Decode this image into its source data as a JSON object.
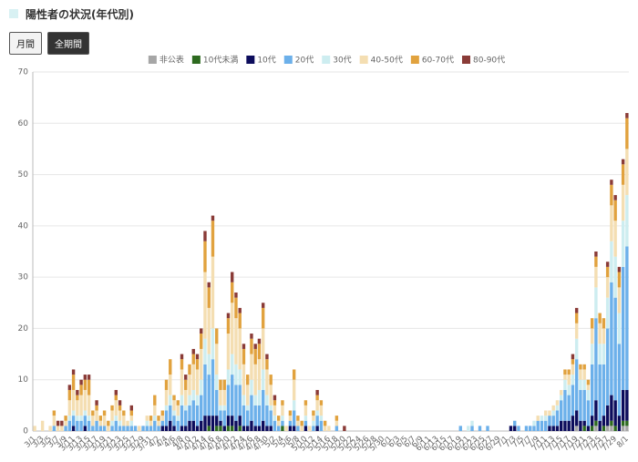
{
  "header": {
    "title": "陽性者の状況(年代別)"
  },
  "buttons": [
    "月間",
    "全期間"
  ],
  "chart_data": {
    "type": "bar",
    "stacked": true,
    "grid": true,
    "legend": "top",
    "ylim": [
      0,
      70
    ],
    "yticks": [
      0,
      10,
      20,
      30,
      40,
      50,
      60,
      70
    ],
    "categories": [
      "3/1",
      null,
      "3/3",
      null,
      "3/5",
      null,
      "3/7",
      null,
      "3/9",
      null,
      "3/11",
      null,
      "3/13",
      null,
      "3/15",
      null,
      "3/17",
      null,
      "3/19",
      null,
      "3/21",
      null,
      "3/23",
      null,
      "3/25",
      null,
      "3/27",
      null,
      "3/29",
      null,
      "3/31",
      null,
      "4/2",
      null,
      "4/4",
      null,
      "4/6",
      null,
      "4/8",
      null,
      "4/10",
      null,
      "4/12",
      null,
      "4/14",
      null,
      "4/16",
      null,
      "4/18",
      null,
      "4/20",
      null,
      "4/22",
      null,
      "4/24",
      null,
      "4/26",
      null,
      "4/28",
      null,
      "4/30",
      null,
      "5/2",
      null,
      "5/4",
      null,
      "5/6",
      null,
      "5/8",
      null,
      "5/10",
      null,
      "5/12",
      null,
      "5/14",
      null,
      "5/16",
      null,
      "5/18",
      null,
      "5/20",
      null,
      "5/22",
      null,
      "5/24",
      null,
      "5/26",
      null,
      "5/28",
      null,
      "5/30",
      null,
      "6/1",
      null,
      "6/3",
      null,
      "6/5",
      null,
      "6/7",
      null,
      "6/9",
      null,
      "6/11",
      null,
      "6/13",
      null,
      "6/15",
      null,
      "6/17",
      null,
      "6/19",
      null,
      "6/21",
      null,
      "6/23",
      null,
      "6/25",
      null,
      "6/27",
      null,
      "6/29",
      null,
      "7/1",
      null,
      "7/3",
      null,
      "7/5",
      null,
      "7/7",
      null,
      "7/9",
      null,
      "7/11",
      null,
      "7/13",
      null,
      "7/15",
      null,
      "7/17",
      null,
      "7/19",
      null,
      "7/21",
      null,
      "7/23",
      null,
      "7/25",
      null,
      "7/27",
      null,
      "7/29",
      null,
      null,
      "8/1"
    ],
    "series": [
      {
        "name": "非公表",
        "color": "#a6a6a6",
        "values": [
          0,
          0,
          0,
          0,
          0,
          0,
          0,
          0,
          0,
          0,
          0,
          0,
          0,
          0,
          0,
          0,
          0,
          0,
          0,
          0,
          0,
          0,
          0,
          0,
          0,
          0,
          0,
          0,
          0,
          0,
          0,
          0,
          0,
          0,
          0,
          0,
          0,
          0,
          0,
          0,
          0,
          0,
          0,
          0,
          0,
          0,
          0,
          0,
          0,
          0,
          0,
          0,
          0,
          0,
          0,
          0,
          0,
          0,
          0,
          0,
          0,
          0,
          0,
          0,
          0,
          0,
          0,
          0,
          0,
          0,
          0,
          0,
          0,
          0,
          0,
          0,
          0,
          0,
          0,
          0,
          0,
          0,
          0,
          0,
          0,
          0,
          0,
          0,
          0,
          0,
          0,
          0,
          0,
          0,
          0,
          0,
          0,
          0,
          0,
          0,
          0,
          0,
          0,
          0,
          0,
          0,
          0,
          0,
          0,
          0,
          0,
          0,
          0,
          0,
          0,
          0,
          0,
          0,
          0,
          0,
          0,
          0,
          0,
          0,
          0,
          0,
          0,
          0,
          0,
          0,
          0,
          0,
          0,
          0,
          0,
          0,
          0,
          0,
          0,
          0,
          1,
          0,
          0,
          0,
          0,
          1,
          0,
          0,
          1,
          1,
          0,
          0,
          1,
          1
        ]
      },
      {
        "name": "10代未満",
        "color": "#2d6a1f",
        "values": [
          0,
          0,
          0,
          0,
          0,
          0,
          0,
          0,
          0,
          0,
          0,
          0,
          0,
          0,
          0,
          0,
          0,
          0,
          0,
          0,
          0,
          0,
          0,
          0,
          0,
          0,
          0,
          0,
          0,
          0,
          0,
          0,
          0,
          0,
          0,
          0,
          0,
          0,
          0,
          0,
          0,
          0,
          0,
          0,
          0,
          1,
          0,
          1,
          1,
          0,
          1,
          1,
          0,
          1,
          0,
          0,
          0,
          0,
          0,
          0,
          0,
          0,
          0,
          0,
          1,
          0,
          0,
          0,
          0,
          0,
          0,
          0,
          0,
          0,
          0,
          0,
          0,
          0,
          0,
          0,
          0,
          0,
          0,
          0,
          0,
          0,
          0,
          0,
          0,
          0,
          0,
          0,
          0,
          0,
          0,
          0,
          0,
          0,
          0,
          0,
          0,
          0,
          0,
          0,
          0,
          0,
          0,
          0,
          0,
          0,
          0,
          0,
          0,
          0,
          0,
          0,
          0,
          0,
          0,
          0,
          0,
          0,
          0,
          0,
          0,
          0,
          0,
          0,
          0,
          0,
          0,
          0,
          0,
          0,
          0,
          0,
          0,
          0,
          0,
          0,
          0,
          0,
          1,
          0,
          1,
          1,
          0,
          1,
          0,
          1,
          1,
          0,
          1,
          1
        ]
      },
      {
        "name": "10代",
        "color": "#0c0c5c",
        "values": [
          0,
          0,
          0,
          0,
          0,
          0,
          0,
          0,
          0,
          0,
          1,
          0,
          0,
          1,
          0,
          0,
          0,
          0,
          0,
          0,
          0,
          0,
          0,
          0,
          0,
          0,
          0,
          0,
          0,
          0,
          0,
          0,
          0,
          1,
          1,
          2,
          1,
          0,
          1,
          1,
          2,
          2,
          1,
          2,
          3,
          2,
          3,
          2,
          1,
          1,
          2,
          2,
          2,
          2,
          1,
          1,
          2,
          1,
          1,
          2,
          1,
          1,
          0,
          0,
          0,
          0,
          1,
          1,
          0,
          0,
          1,
          0,
          0,
          1,
          0,
          0,
          0,
          0,
          0,
          0,
          0,
          0,
          0,
          0,
          0,
          0,
          0,
          0,
          0,
          0,
          0,
          0,
          0,
          0,
          0,
          0,
          0,
          0,
          0,
          0,
          0,
          0,
          0,
          0,
          0,
          0,
          0,
          0,
          0,
          0,
          0,
          0,
          0,
          0,
          0,
          0,
          0,
          0,
          0,
          0,
          0,
          0,
          0,
          1,
          1,
          0,
          0,
          0,
          0,
          0,
          0,
          0,
          0,
          1,
          1,
          1,
          2,
          2,
          2,
          3,
          3,
          2,
          1,
          1,
          2,
          4,
          2,
          2,
          4,
          5,
          5,
          3,
          6,
          6
        ]
      },
      {
        "name": "20代",
        "color": "#6cb0ea",
        "values": [
          0,
          0,
          0,
          0,
          0,
          1,
          0,
          0,
          1,
          2,
          2,
          2,
          2,
          2,
          2,
          1,
          2,
          1,
          1,
          0,
          1,
          2,
          1,
          1,
          1,
          1,
          1,
          0,
          1,
          1,
          1,
          2,
          1,
          1,
          3,
          3,
          2,
          2,
          4,
          3,
          3,
          4,
          4,
          5,
          10,
          8,
          11,
          5,
          2,
          3,
          6,
          8,
          7,
          6,
          4,
          3,
          5,
          4,
          4,
          6,
          4,
          3,
          2,
          1,
          1,
          0,
          1,
          3,
          1,
          0,
          1,
          0,
          1,
          2,
          2,
          0,
          0,
          0,
          1,
          0,
          0,
          0,
          0,
          0,
          0,
          0,
          0,
          0,
          0,
          0,
          0,
          0,
          0,
          0,
          0,
          0,
          0,
          0,
          0,
          0,
          0,
          0,
          0,
          0,
          0,
          0,
          0,
          0,
          0,
          0,
          1,
          0,
          0,
          1,
          0,
          1,
          0,
          1,
          0,
          0,
          0,
          0,
          0,
          0,
          1,
          1,
          0,
          1,
          1,
          1,
          2,
          2,
          2,
          2,
          2,
          3,
          4,
          6,
          5,
          6,
          10,
          6,
          6,
          5,
          10,
          16,
          11,
          10,
          15,
          22,
          20,
          14,
          24,
          28
        ]
      },
      {
        "name": "30代",
        "color": "#cdedf0",
        "values": [
          0,
          0,
          0,
          0,
          0,
          0,
          0,
          0,
          0,
          1,
          1,
          1,
          1,
          1,
          1,
          0,
          0,
          0,
          0,
          0,
          1,
          1,
          1,
          0,
          0,
          1,
          0,
          0,
          0,
          1,
          0,
          1,
          0,
          0,
          1,
          2,
          1,
          1,
          2,
          1,
          2,
          2,
          2,
          3,
          5,
          4,
          6,
          3,
          1,
          1,
          3,
          4,
          4,
          3,
          2,
          1,
          3,
          2,
          3,
          4,
          2,
          1,
          1,
          0,
          1,
          0,
          0,
          2,
          0,
          0,
          1,
          0,
          1,
          1,
          1,
          0,
          0,
          0,
          0,
          0,
          0,
          0,
          0,
          0,
          0,
          0,
          0,
          0,
          0,
          0,
          0,
          0,
          0,
          0,
          0,
          0,
          0,
          0,
          0,
          0,
          0,
          0,
          0,
          0,
          0,
          0,
          0,
          0,
          0,
          0,
          0,
          0,
          1,
          1,
          0,
          0,
          0,
          0,
          0,
          0,
          0,
          0,
          0,
          0,
          0,
          0,
          0,
          0,
          0,
          1,
          0,
          1,
          1,
          0,
          1,
          1,
          1,
          2,
          2,
          2,
          4,
          2,
          2,
          2,
          4,
          6,
          4,
          4,
          6,
          8,
          8,
          6,
          9,
          10
        ]
      },
      {
        "name": "40-50代",
        "color": "#f4deb2",
        "values": [
          1,
          0,
          2,
          0,
          1,
          2,
          1,
          1,
          1,
          3,
          4,
          3,
          4,
          4,
          4,
          2,
          2,
          1,
          2,
          1,
          2,
          3,
          2,
          2,
          1,
          1,
          0,
          1,
          0,
          1,
          1,
          2,
          1,
          1,
          3,
          4,
          2,
          2,
          5,
          3,
          4,
          5,
          5,
          6,
          13,
          9,
          14,
          6,
          3,
          3,
          7,
          10,
          9,
          8,
          6,
          4,
          5,
          6,
          6,
          8,
          5,
          4,
          2,
          1,
          2,
          1,
          1,
          4,
          1,
          1,
          2,
          1,
          1,
          2,
          2,
          1,
          1,
          0,
          1,
          0,
          0,
          0,
          0,
          0,
          0,
          0,
          0,
          0,
          0,
          0,
          0,
          0,
          0,
          0,
          0,
          0,
          0,
          0,
          0,
          0,
          0,
          0,
          0,
          0,
          0,
          0,
          0,
          0,
          0,
          0,
          0,
          0,
          0,
          0,
          0,
          0,
          0,
          0,
          0,
          0,
          0,
          0,
          0,
          0,
          0,
          0,
          0,
          0,
          0,
          0,
          1,
          0,
          1,
          1,
          1,
          1,
          1,
          1,
          2,
          2,
          3,
          2,
          2,
          1,
          3,
          4,
          4,
          3,
          4,
          7,
          7,
          5,
          7,
          9
        ]
      },
      {
        "name": "60-70代",
        "color": "#e1a23e",
        "values": [
          0,
          0,
          0,
          0,
          0,
          1,
          0,
          0,
          1,
          2,
          3,
          1,
          2,
          2,
          3,
          1,
          1,
          1,
          1,
          1,
          1,
          1,
          1,
          1,
          0,
          1,
          0,
          0,
          0,
          0,
          1,
          2,
          1,
          1,
          2,
          3,
          1,
          1,
          2,
          2,
          2,
          2,
          2,
          3,
          6,
          4,
          7,
          3,
          2,
          2,
          3,
          4,
          4,
          3,
          3,
          2,
          3,
          3,
          3,
          4,
          2,
          2,
          1,
          1,
          1,
          0,
          1,
          2,
          1,
          1,
          1,
          0,
          1,
          1,
          1,
          1,
          0,
          0,
          1,
          0,
          0,
          0,
          0,
          0,
          0,
          0,
          0,
          0,
          0,
          0,
          0,
          0,
          0,
          0,
          0,
          0,
          0,
          0,
          0,
          0,
          0,
          0,
          0,
          0,
          0,
          0,
          0,
          0,
          0,
          0,
          0,
          0,
          0,
          0,
          0,
          0,
          0,
          0,
          0,
          0,
          0,
          0,
          0,
          0,
          0,
          0,
          0,
          0,
          0,
          0,
          0,
          0,
          0,
          0,
          0,
          0,
          0,
          1,
          1,
          1,
          2,
          1,
          1,
          1,
          2,
          2,
          2,
          2,
          2,
          4,
          4,
          3,
          4,
          6
        ]
      },
      {
        "name": "80-90代",
        "color": "#8a3b37",
        "values": [
          0,
          0,
          0,
          0,
          0,
          0,
          1,
          1,
          0,
          1,
          1,
          1,
          1,
          1,
          1,
          0,
          1,
          0,
          0,
          0,
          0,
          1,
          1,
          0,
          0,
          1,
          0,
          0,
          0,
          0,
          0,
          0,
          0,
          0,
          0,
          0,
          0,
          0,
          1,
          1,
          0,
          1,
          1,
          1,
          2,
          1,
          1,
          0,
          0,
          0,
          1,
          2,
          1,
          1,
          1,
          0,
          1,
          1,
          1,
          1,
          1,
          0,
          1,
          0,
          0,
          0,
          0,
          0,
          0,
          0,
          0,
          0,
          0,
          1,
          0,
          0,
          0,
          0,
          0,
          0,
          1,
          0,
          0,
          0,
          0,
          0,
          0,
          0,
          0,
          0,
          0,
          0,
          0,
          0,
          0,
          0,
          0,
          0,
          0,
          0,
          0,
          0,
          0,
          0,
          0,
          0,
          0,
          0,
          0,
          0,
          0,
          0,
          0,
          0,
          0,
          0,
          0,
          0,
          0,
          0,
          0,
          0,
          0,
          0,
          0,
          0,
          0,
          0,
          0,
          0,
          0,
          0,
          0,
          0,
          0,
          0,
          0,
          0,
          0,
          1,
          1,
          0,
          0,
          0,
          0,
          1,
          0,
          0,
          1,
          1,
          1,
          1,
          1,
          1
        ]
      }
    ]
  }
}
